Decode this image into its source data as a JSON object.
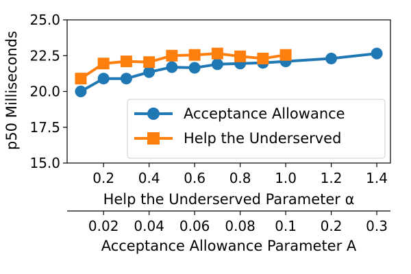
{
  "chart_data": {
    "type": "line",
    "ylabel": "p50 Milliseconds",
    "ylim": [
      15.0,
      25.0
    ],
    "yticks": [
      "15.0",
      "17.5",
      "20.0",
      "22.5",
      "25.0"
    ],
    "primary_x_axis": {
      "label": "Help the Underserved Parameter α",
      "range": [
        0.04,
        1.46
      ],
      "ticks": [
        0.2,
        0.4,
        0.6,
        0.8,
        1.0,
        1.2,
        1.4
      ],
      "tick_labels": [
        "0.2",
        "0.4",
        "0.6",
        "0.8",
        "1.0",
        "1.2",
        "1.4"
      ]
    },
    "secondary_x_axis": {
      "label": "Acceptance Allowance Parameter A",
      "tick_labels": [
        "0.02",
        "0.04",
        "0.06",
        "0.08",
        "0.1",
        "0.2",
        "0.3"
      ]
    },
    "series": [
      {
        "name": "Acceptance Allowance",
        "color": "#1f77b4",
        "marker": "circle",
        "x": [
          0.1,
          0.2,
          0.3,
          0.4,
          0.5,
          0.6,
          0.7,
          0.8,
          0.9,
          1.0,
          1.2,
          1.4
        ],
        "values": [
          20.0,
          20.9,
          20.9,
          21.35,
          21.7,
          21.65,
          21.9,
          21.95,
          22.0,
          22.1,
          22.3,
          22.65
        ]
      },
      {
        "name": "Help the Underserved",
        "color": "#ff7f0e",
        "marker": "square",
        "x": [
          0.1,
          0.2,
          0.3,
          0.4,
          0.5,
          0.6,
          0.7,
          0.8,
          0.9,
          1.0
        ],
        "values": [
          20.9,
          21.95,
          22.1,
          22.05,
          22.5,
          22.55,
          22.65,
          22.45,
          22.3,
          22.55
        ]
      }
    ],
    "legend_position": "lower-right",
    "grid": false
  }
}
